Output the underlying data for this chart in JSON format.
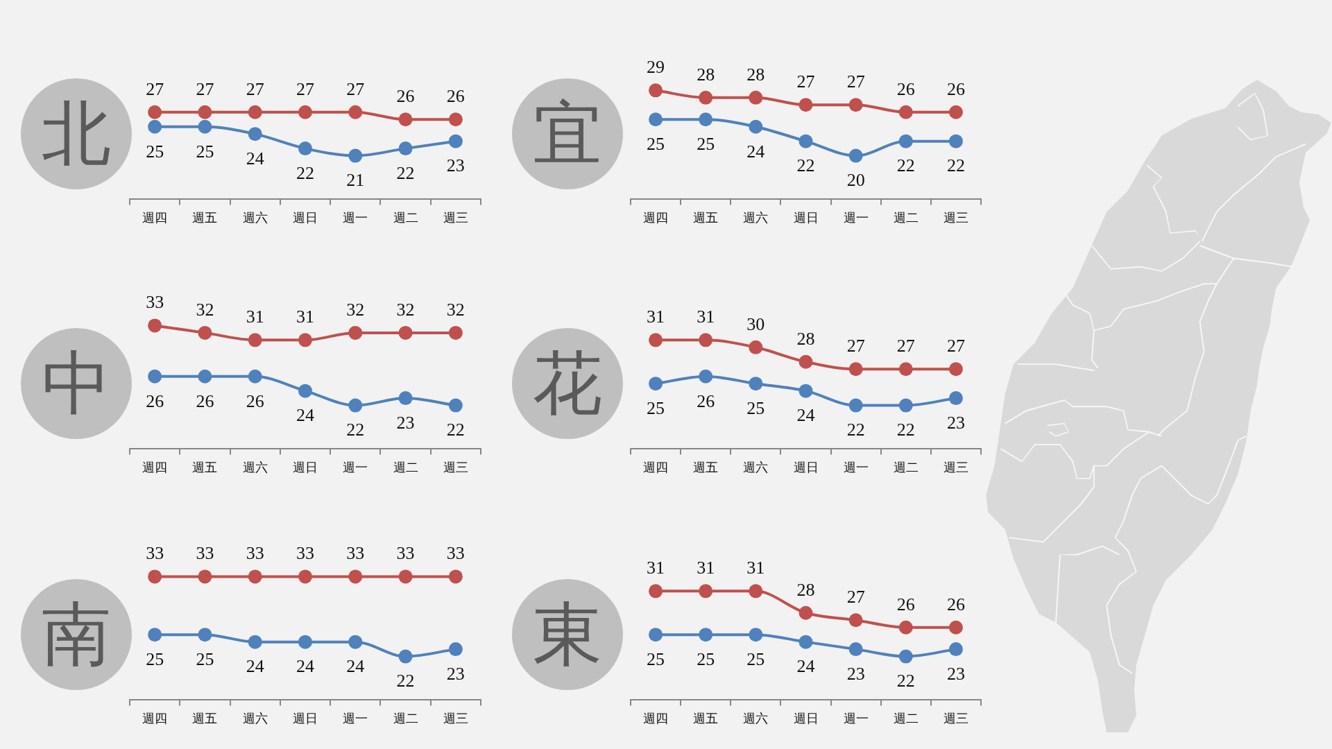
{
  "chart_data": [
    {
      "type": "line",
      "title": "北",
      "categories": [
        "週四",
        "週五",
        "週六",
        "週日",
        "週一",
        "週二",
        "週三"
      ],
      "series": [
        {
          "color": "#c0504d",
          "values": [
            27,
            27,
            27,
            27,
            27,
            26,
            26
          ]
        },
        {
          "color": "#4f81bd",
          "values": [
            25,
            25,
            24,
            22,
            21,
            22,
            23
          ]
        }
      ],
      "tick_labels": "x",
      "marker": "circle",
      "data_labels": true
    },
    {
      "type": "line",
      "title": "宜",
      "categories": [
        "週四",
        "週五",
        "週六",
        "週日",
        "週一",
        "週二",
        "週三"
      ],
      "series": [
        {
          "color": "#c0504d",
          "values": [
            29,
            28,
            28,
            27,
            27,
            26,
            26
          ]
        },
        {
          "color": "#4f81bd",
          "values": [
            25,
            25,
            24,
            22,
            20,
            22,
            22
          ]
        }
      ],
      "tick_labels": "x",
      "marker": "circle",
      "data_labels": true
    },
    {
      "type": "line",
      "title": "中",
      "categories": [
        "週四",
        "週五",
        "週六",
        "週日",
        "週一",
        "週二",
        "週三"
      ],
      "series": [
        {
          "color": "#c0504d",
          "values": [
            33,
            32,
            31,
            31,
            32,
            32,
            32
          ]
        },
        {
          "color": "#4f81bd",
          "values": [
            26,
            26,
            26,
            24,
            22,
            23,
            22
          ]
        }
      ],
      "tick_labels": "x",
      "marker": "circle",
      "data_labels": true
    },
    {
      "type": "line",
      "title": "花",
      "categories": [
        "週四",
        "週五",
        "週六",
        "週日",
        "週一",
        "週二",
        "週三"
      ],
      "series": [
        {
          "color": "#c0504d",
          "values": [
            31,
            31,
            30,
            28,
            27,
            27,
            27
          ]
        },
        {
          "color": "#4f81bd",
          "values": [
            25,
            26,
            25,
            24,
            22,
            22,
            23
          ]
        }
      ],
      "tick_labels": "x",
      "marker": "circle",
      "data_labels": true
    },
    {
      "type": "line",
      "title": "南",
      "categories": [
        "週四",
        "週五",
        "週六",
        "週日",
        "週一",
        "週二",
        "週三"
      ],
      "series": [
        {
          "color": "#c0504d",
          "values": [
            33,
            33,
            33,
            33,
            33,
            33,
            33
          ]
        },
        {
          "color": "#4f81bd",
          "values": [
            25,
            25,
            24,
            24,
            24,
            22,
            23
          ]
        }
      ],
      "tick_labels": "x",
      "marker": "circle",
      "data_labels": true
    },
    {
      "type": "line",
      "title": "東",
      "categories": [
        "週四",
        "週五",
        "週六",
        "週日",
        "週一",
        "週二",
        "週三"
      ],
      "series": [
        {
          "color": "#c0504d",
          "values": [
            31,
            31,
            31,
            28,
            27,
            26,
            26
          ]
        },
        {
          "color": "#4f81bd",
          "values": [
            25,
            25,
            25,
            24,
            23,
            22,
            23
          ]
        }
      ],
      "tick_labels": "x",
      "marker": "circle",
      "data_labels": true
    }
  ]
}
